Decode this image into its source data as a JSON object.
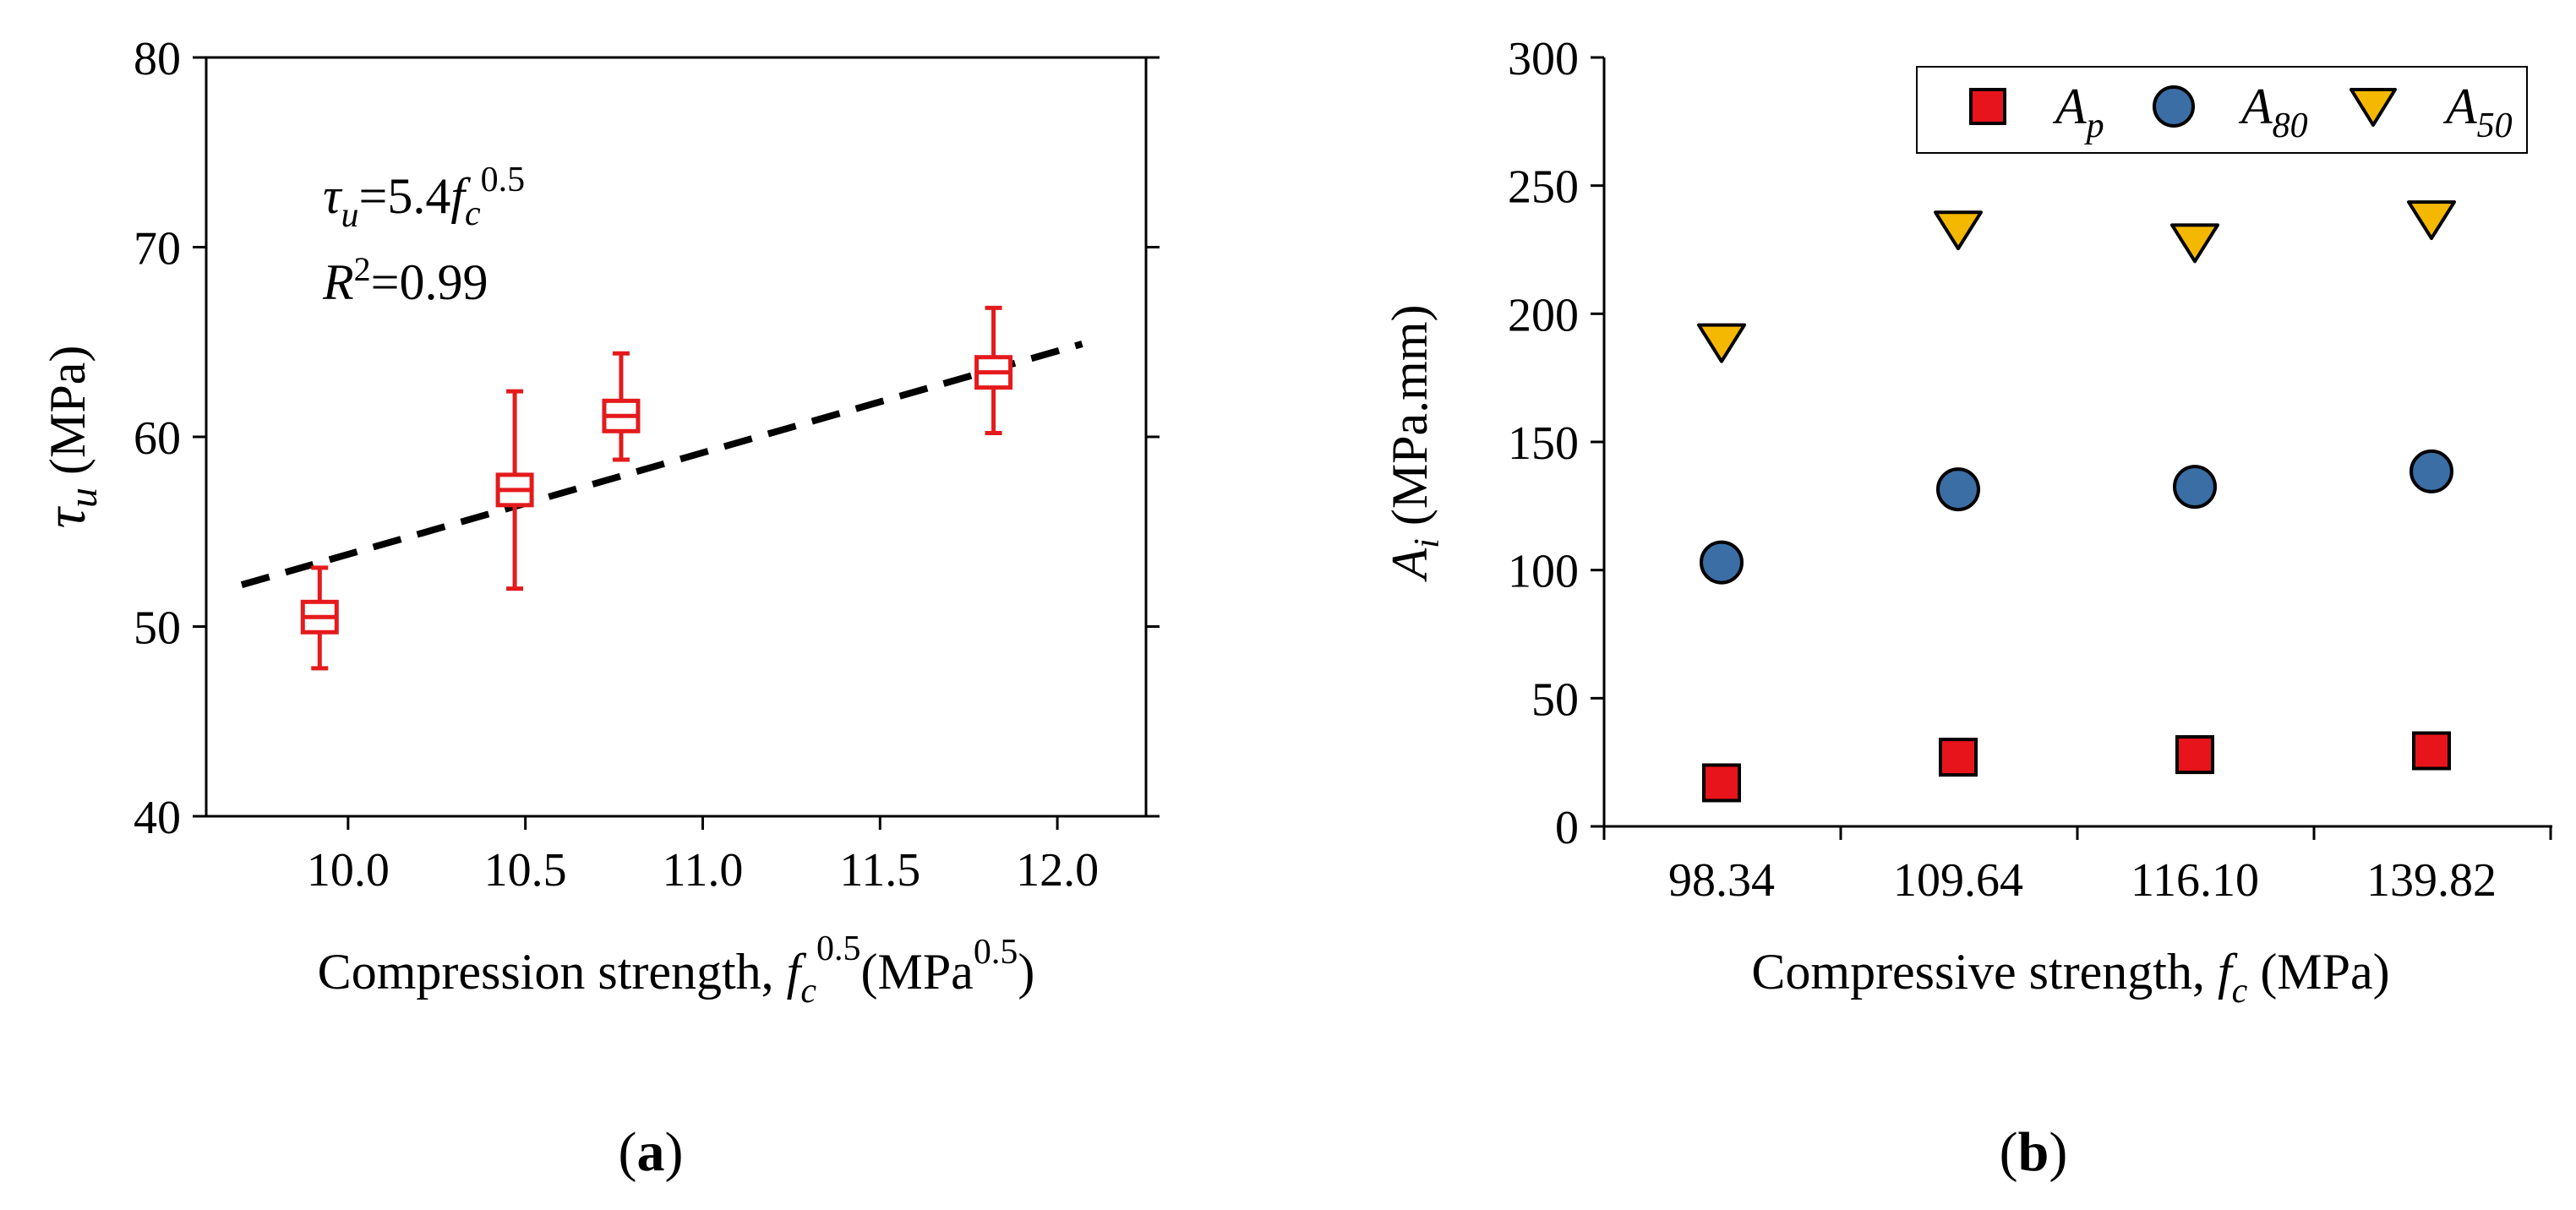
{
  "chart_data": [
    {
      "type": "scatter",
      "panel": "(a)",
      "panel_letter": "a",
      "xlabel": "Compression strength, f_c^0.5 (MPa^0.5)",
      "xlabel_parts": {
        "main": "Compression strength, ",
        "var": "f",
        "sub": "c",
        "sup": "0.5",
        "paren_open": "(MPa",
        "unit_sup": "0.5",
        "paren_close": ")"
      },
      "ylabel": "τu (MPa)",
      "ylabel_parts": {
        "var": "τ",
        "sub": "u",
        "rest": " (MPa)"
      },
      "xlim": [
        9.6,
        12.25
      ],
      "ylim": [
        40,
        80
      ],
      "xticks": [
        10.0,
        10.5,
        11.0,
        11.5,
        12.0
      ],
      "xtick_labels": [
        "10.0",
        "10.5",
        "11.0",
        "11.5",
        "12.0"
      ],
      "yticks": [
        40,
        50,
        60,
        70,
        80
      ],
      "ytick_labels": [
        "40",
        "50",
        "60",
        "70",
        "80"
      ],
      "annotation": {
        "equation": "τu=5.4fc^0.5",
        "eq_parts": {
          "var": "τ",
          "sub": "u",
          "mid": "=5.4",
          "f": "f",
          "fsub": "c",
          "sup": "0.5"
        },
        "r2": "R2=0.99",
        "r2_parts": {
          "var": "R",
          "sup": "2",
          "rest": "=0.99"
        }
      },
      "boxes": [
        {
          "x": 9.92,
          "min": 47.8,
          "q1": 49.7,
          "median": 50.5,
          "q3": 51.3,
          "max": 53.1
        },
        {
          "x": 10.47,
          "min": 52.0,
          "q1": 56.4,
          "median": 57.2,
          "q3": 58.0,
          "max": 62.4
        },
        {
          "x": 10.77,
          "min": 58.8,
          "q1": 60.3,
          "median": 61.1,
          "q3": 61.9,
          "max": 64.4
        },
        {
          "x": 11.82,
          "min": 60.2,
          "q1": 62.6,
          "median": 63.4,
          "q3": 64.2,
          "max": 66.8
        }
      ],
      "fit_line": {
        "x": [
          9.7,
          12.07
        ],
        "y": [
          52.2,
          64.9
        ]
      },
      "colors": {
        "box": "#e41a1c",
        "fit": "#000000"
      }
    },
    {
      "type": "scatter",
      "panel": "(b)",
      "panel_letter": "b",
      "xlabel": "Compressive strength, f_c (MPa)",
      "xlabel_parts": {
        "main": "Compressive strength, ",
        "var": "f",
        "sub": "c",
        "rest": " (MPa)"
      },
      "ylabel": "Ai (MPa.mm)",
      "ylabel_parts": {
        "var": "A",
        "sub": "i",
        "rest": " (MPa.mm)"
      },
      "categories": [
        "98.34",
        "109.64",
        "116.10",
        "139.82"
      ],
      "ylim": [
        0,
        300
      ],
      "yticks": [
        0,
        50,
        100,
        150,
        200,
        250,
        300
      ],
      "ytick_labels": [
        "0",
        "50",
        "100",
        "150",
        "200",
        "250",
        "300"
      ],
      "series": [
        {
          "name": "A_p",
          "label_var": "A",
          "label_sub": "p",
          "marker": "square",
          "color": "#e8141c",
          "values": [
            17,
            27,
            28,
            29.5
          ]
        },
        {
          "name": "A_80",
          "label_var": "A",
          "label_sub": "80",
          "marker": "circle",
          "color": "#3a6ea5",
          "values": [
            103,
            131.5,
            132.5,
            138.5
          ]
        },
        {
          "name": "A_50",
          "label_var": "A",
          "label_sub": "50",
          "marker": "triangle-down",
          "color": "#f5b800",
          "values": [
            190,
            234,
            229,
            238
          ]
        }
      ],
      "legend_position": "top-right"
    }
  ]
}
